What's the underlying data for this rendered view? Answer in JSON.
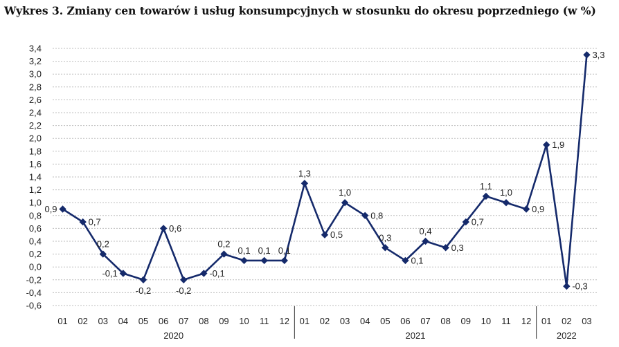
{
  "title": "Wykres 3. Zmiany cen towarów i usług konsumpcyjnych w stosunku do okresu poprzedniego (w %)",
  "chart_data": {
    "type": "line",
    "categories": [
      "01",
      "02",
      "03",
      "04",
      "05",
      "06",
      "07",
      "08",
      "09",
      "10",
      "11",
      "12",
      "01",
      "02",
      "03",
      "04",
      "05",
      "06",
      "07",
      "08",
      "09",
      "10",
      "11",
      "12",
      "01",
      "02",
      "03"
    ],
    "year_groups": [
      {
        "label": "2020",
        "start": 0,
        "end": 11
      },
      {
        "label": "2021",
        "start": 12,
        "end": 23
      },
      {
        "label": "2022",
        "start": 24,
        "end": 26
      }
    ],
    "values": [
      0.9,
      0.7,
      0.2,
      -0.1,
      -0.2,
      0.6,
      -0.2,
      -0.1,
      0.2,
      0.1,
      0.1,
      0.1,
      1.3,
      0.5,
      1.0,
      0.8,
      0.3,
      0.1,
      0.4,
      0.3,
      0.7,
      1.1,
      1.0,
      0.9,
      1.9,
      -0.3,
      3.3
    ],
    "value_labels": [
      "0,9",
      "0,7",
      "0,2",
      "-0,1",
      "-0,2",
      "0,6",
      "-0,2",
      "-0,1",
      "0,2",
      "0,1",
      "0,1",
      "0,1",
      "1,3",
      "0,5",
      "1,0",
      "0,8",
      "0,3",
      "0,1",
      "0,4",
      "0,3",
      "0,7",
      "1,1",
      "1,0",
      "0,9",
      "1,9",
      "-0,3",
      "3,3"
    ],
    "label_pos": [
      "L",
      "R",
      "T",
      "L",
      "B",
      "R",
      "B",
      "R",
      "T",
      "T",
      "T",
      "T",
      "T",
      "R",
      "T",
      "R",
      "T",
      "R",
      "T",
      "R",
      "R",
      "T",
      "T",
      "R",
      "R",
      "R",
      "R"
    ],
    "ylim": [
      -0.6,
      3.4
    ],
    "yticks": [
      -0.6,
      -0.4,
      -0.2,
      0.0,
      0.2,
      0.4,
      0.6,
      0.8,
      1.0,
      1.2,
      1.4,
      1.6,
      1.8,
      2.0,
      2.2,
      2.4,
      2.6,
      2.8,
      3.0,
      3.2,
      3.4
    ],
    "ytick_labels": [
      "-0,6",
      "-0,4",
      "-0,2",
      "0,0",
      "0,2",
      "0,4",
      "0,6",
      "0,8",
      "1,0",
      "1,2",
      "1,4",
      "1,6",
      "1,8",
      "2,0",
      "2,2",
      "2,4",
      "2,6",
      "2,8",
      "3,0",
      "3,2",
      "3,4"
    ],
    "grid": true,
    "line_color": "#152a6b",
    "marker": "diamond"
  }
}
